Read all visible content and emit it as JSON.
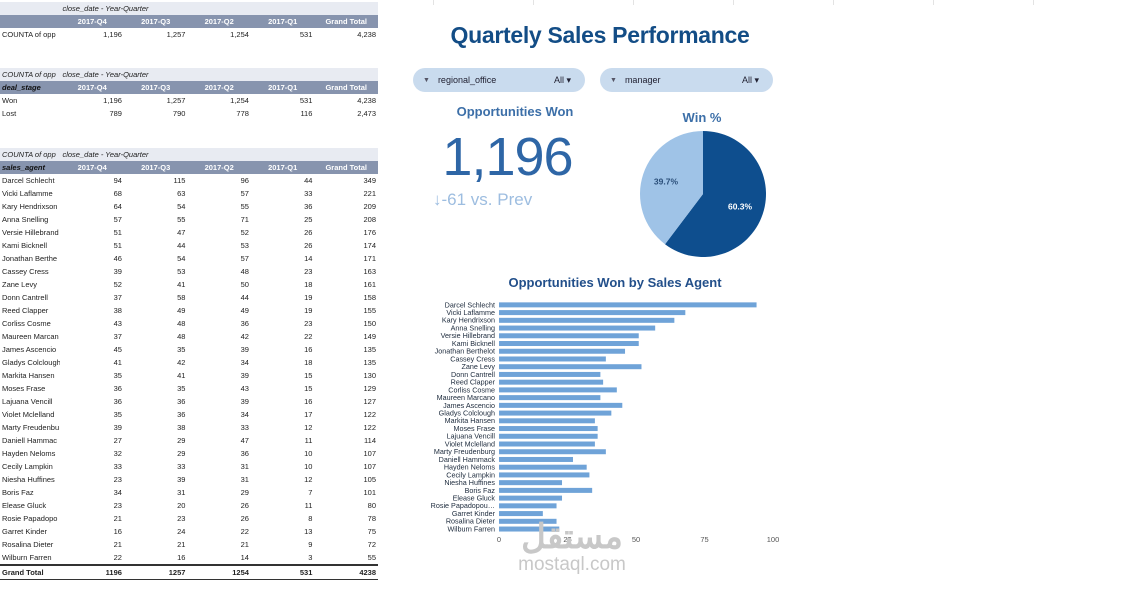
{
  "sheet": {
    "quarter_headers": [
      "2017-Q4",
      "2017-Q3",
      "2017-Q2",
      "2017-Q1",
      "Grand Total"
    ],
    "table1": {
      "col_caption": "close_date - Year-Quarter",
      "row": {
        "label": "COUNTA of opp",
        "values": [
          "1,196",
          "1,257",
          "1,254",
          "531",
          "4,238"
        ]
      }
    },
    "table2": {
      "corner_caption": "COUNTA of opp",
      "col_caption": "close_date - Year-Quarter",
      "row_header": "deal_stage",
      "rows": [
        {
          "label": "Won",
          "values": [
            "1,196",
            "1,257",
            "1,254",
            "531",
            "4,238"
          ]
        },
        {
          "label": "Lost",
          "values": [
            "789",
            "790",
            "778",
            "116",
            "2,473"
          ]
        }
      ]
    },
    "table3": {
      "corner_caption": "COUNTA of opp",
      "col_caption": "close_date - Year-Quarter",
      "row_header": "sales_agent",
      "rows": [
        {
          "label": "Darcel Schlecht",
          "values": [
            "94",
            "115",
            "96",
            "44",
            "349"
          ]
        },
        {
          "label": "Vicki Laflamme",
          "values": [
            "68",
            "63",
            "57",
            "33",
            "221"
          ]
        },
        {
          "label": "Kary Hendrixson",
          "values": [
            "64",
            "54",
            "55",
            "36",
            "209"
          ]
        },
        {
          "label": "Anna Snelling",
          "values": [
            "57",
            "55",
            "71",
            "25",
            "208"
          ]
        },
        {
          "label": "Versie Hillebrand",
          "values": [
            "51",
            "47",
            "52",
            "26",
            "176"
          ]
        },
        {
          "label": "Kami Bicknell",
          "values": [
            "51",
            "44",
            "53",
            "26",
            "174"
          ]
        },
        {
          "label": "Jonathan Berthe",
          "values": [
            "46",
            "54",
            "57",
            "14",
            "171"
          ]
        },
        {
          "label": "Cassey Cress",
          "values": [
            "39",
            "53",
            "48",
            "23",
            "163"
          ]
        },
        {
          "label": "Zane Levy",
          "values": [
            "52",
            "41",
            "50",
            "18",
            "161"
          ]
        },
        {
          "label": "Donn Cantrell",
          "values": [
            "37",
            "58",
            "44",
            "19",
            "158"
          ]
        },
        {
          "label": "Reed Clapper",
          "values": [
            "38",
            "49",
            "49",
            "19",
            "155"
          ]
        },
        {
          "label": "Corliss Cosme",
          "values": [
            "43",
            "48",
            "36",
            "23",
            "150"
          ]
        },
        {
          "label": "Maureen Marcan",
          "values": [
            "37",
            "48",
            "42",
            "22",
            "149"
          ]
        },
        {
          "label": "James Ascencio",
          "values": [
            "45",
            "35",
            "39",
            "16",
            "135"
          ]
        },
        {
          "label": "Gladys Colclough",
          "values": [
            "41",
            "42",
            "34",
            "18",
            "135"
          ]
        },
        {
          "label": "Markita Hansen",
          "values": [
            "35",
            "41",
            "39",
            "15",
            "130"
          ]
        },
        {
          "label": "Moses Frase",
          "values": [
            "36",
            "35",
            "43",
            "15",
            "129"
          ]
        },
        {
          "label": "Lajuana Vencill",
          "values": [
            "36",
            "36",
            "39",
            "16",
            "127"
          ]
        },
        {
          "label": "Violet Mclelland",
          "values": [
            "35",
            "36",
            "34",
            "17",
            "122"
          ]
        },
        {
          "label": "Marty Freudenbu",
          "values": [
            "39",
            "38",
            "33",
            "12",
            "122"
          ]
        },
        {
          "label": "Daniell Hammac",
          "values": [
            "27",
            "29",
            "47",
            "11",
            "114"
          ]
        },
        {
          "label": "Hayden Neloms",
          "values": [
            "32",
            "29",
            "36",
            "10",
            "107"
          ]
        },
        {
          "label": "Cecily Lampkin",
          "values": [
            "33",
            "33",
            "31",
            "10",
            "107"
          ]
        },
        {
          "label": "Niesha Huffines",
          "values": [
            "23",
            "39",
            "31",
            "12",
            "105"
          ]
        },
        {
          "label": "Boris Faz",
          "values": [
            "34",
            "31",
            "29",
            "7",
            "101"
          ]
        },
        {
          "label": "Elease Gluck",
          "values": [
            "23",
            "20",
            "26",
            "11",
            "80"
          ]
        },
        {
          "label": "Rosie Papadopo",
          "values": [
            "21",
            "23",
            "26",
            "8",
            "78"
          ]
        },
        {
          "label": "Garret Kinder",
          "values": [
            "16",
            "24",
            "22",
            "13",
            "75"
          ]
        },
        {
          "label": "Rosalina Dieter",
          "values": [
            "21",
            "21",
            "21",
            "9",
            "72"
          ]
        },
        {
          "label": "Wilburn Farren",
          "values": [
            "22",
            "16",
            "14",
            "3",
            "55"
          ]
        }
      ],
      "grand_total": {
        "label": "Grand Total",
        "values": [
          "1196",
          "1257",
          "1254",
          "531",
          "4238"
        ]
      }
    }
  },
  "dashboard": {
    "title": "Quartely Sales Performance",
    "filters": [
      {
        "name": "regional_office",
        "value": "All"
      },
      {
        "name": "manager",
        "value": "All"
      }
    ],
    "scorecard": {
      "title": "Opportunities Won",
      "value": "1,196",
      "delta": "↓-61 vs. Prev"
    },
    "pie": {
      "title": "Win %",
      "dark_color": "#0e4e8e",
      "light_color": "#9fc3e7"
    },
    "bar_chart_title": "Opportunities Won by Sales Agent",
    "bar_color": "#6fa3d8"
  },
  "chart_data": [
    {
      "type": "pie",
      "title": "Win %",
      "slices": [
        {
          "label": "60.3%",
          "value": 60.3
        },
        {
          "label": "39.7%",
          "value": 39.7
        }
      ]
    },
    {
      "type": "bar",
      "orientation": "horizontal",
      "title": "Opportunities Won by Sales Agent",
      "categories": [
        "Darcel Schlecht",
        "Vicki Laflamme",
        "Kary Hendrixson",
        "Anna Snelling",
        "Versie Hillebrand",
        "Kami Bicknell",
        "Jonathan Berthelot",
        "Cassey Cress",
        "Zane Levy",
        "Donn Cantrell",
        "Reed Clapper",
        "Corliss Cosme",
        "Maureen Marcano",
        "James Ascencio",
        "Gladys Colclough",
        "Markita Hansen",
        "Moses Frase",
        "Lajuana Vencill",
        "Violet Mclelland",
        "Marty Freudenburg",
        "Daniell Hammack",
        "Hayden Neloms",
        "Cecily Lampkin",
        "Niesha Huffines",
        "Boris Faz",
        "Elease Gluck",
        "Rosie Papadopou…",
        "Garret Kinder",
        "Rosalina Dieter",
        "Wilburn Farren"
      ],
      "values": [
        94,
        68,
        64,
        57,
        51,
        51,
        46,
        39,
        52,
        37,
        38,
        43,
        37,
        45,
        41,
        35,
        36,
        36,
        35,
        39,
        27,
        32,
        33,
        23,
        34,
        23,
        21,
        16,
        21,
        22
      ],
      "xlim": [
        0,
        100
      ],
      "xticks": [
        0,
        25,
        50,
        75,
        100
      ],
      "grid": false
    }
  ],
  "watermark": {
    "arabic": "مستقل",
    "latin": "mostaql.com"
  }
}
